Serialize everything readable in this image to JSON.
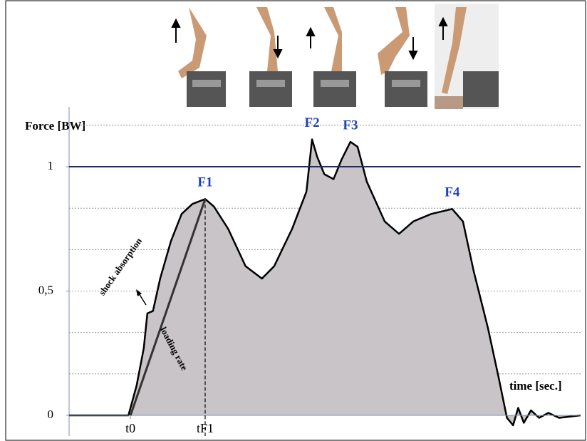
{
  "chart_data": {
    "type": "area",
    "y_label": "Force [BW]",
    "x_label": "time [sec.]",
    "x": [
      0,
      11.6,
      13.2,
      14.6,
      15.3,
      16.4,
      17.8,
      19.9,
      22.0,
      24.1,
      26.6,
      28.3,
      31.1,
      34.5,
      37.7,
      40.1,
      43.6,
      46.4,
      47.5,
      48.5,
      49.9,
      51.7,
      53.3,
      55.0,
      56.4,
      58.2,
      61.7,
      64.5,
      67.3,
      70.8,
      74.9,
      77.0,
      79.1,
      81.9,
      84.0,
      85.6,
      86.8,
      87.8,
      88.9,
      90.3,
      91.9,
      93.7,
      95.8,
      100
    ],
    "values": [
      0,
      0,
      0.12,
      0.27,
      0.41,
      0.42,
      0.55,
      0.7,
      0.81,
      0.85,
      0.87,
      0.84,
      0.75,
      0.6,
      0.55,
      0.6,
      0.75,
      0.9,
      1.11,
      1.04,
      0.97,
      0.95,
      1.03,
      1.1,
      1.08,
      0.94,
      0.78,
      0.73,
      0.78,
      0.81,
      0.83,
      0.78,
      0.58,
      0.35,
      0.15,
      -0.01,
      -0.04,
      0.03,
      -0.03,
      0.02,
      -0.01,
      0.01,
      -0.01,
      0
    ],
    "color": "#000000",
    "fill": "#c9c4c7",
    "xlim": [
      0,
      100
    ],
    "ylim": [
      -0.05,
      1.25
    ],
    "xticks": [
      {
        "value": 12,
        "label": "t0"
      },
      {
        "value": 26.6,
        "label": "tF1"
      }
    ],
    "yticks": [
      0,
      {
        "value": 0.5,
        "label": "0,5"
      },
      1
    ],
    "grid_lines": [
      0.1667,
      0.3333,
      0.5,
      0.6667,
      0.8333,
      1.1667
    ],
    "ref_line": {
      "value": 1,
      "color": "#1f2a6b"
    },
    "annotations": [
      {
        "text": "F1",
        "x": 26.6,
        "y": 0.87
      },
      {
        "text": "F2",
        "x": 47.5,
        "y": 1.11
      },
      {
        "text": "F3",
        "x": 55.0,
        "y": 1.1
      },
      {
        "text": "F4",
        "x": 74.9,
        "y": 0.83
      },
      {
        "text": "shock absorption"
      },
      {
        "text": "loading rate"
      }
    ]
  }
}
